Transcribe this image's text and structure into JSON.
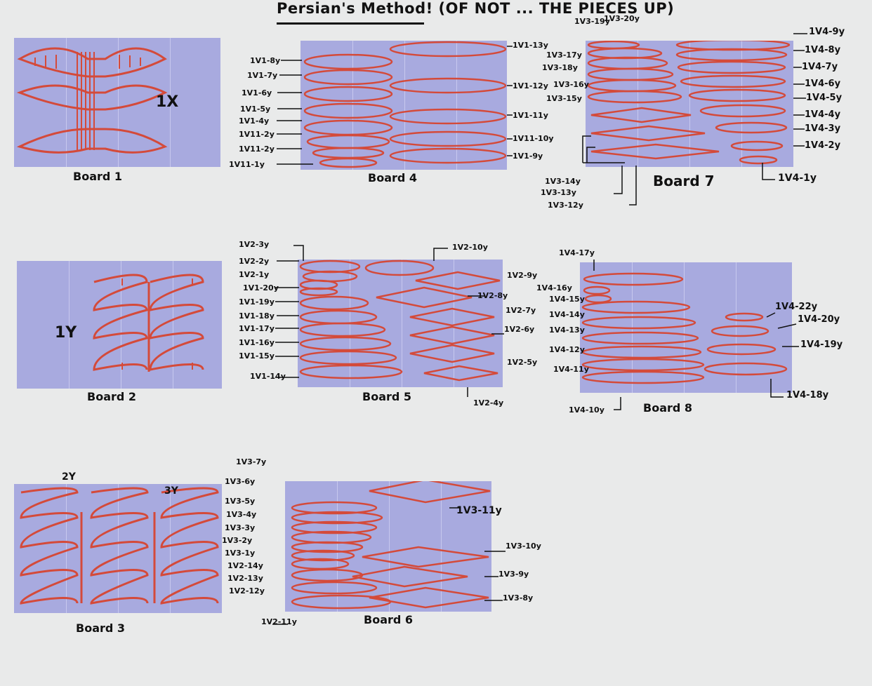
{
  "title": "Persian's Method! (OF NOT ... THE PIECES UP)",
  "colors": {
    "board": "#a8aadf",
    "strand": "#d44a3a",
    "ink": "#111111",
    "paper": "#e9eaea"
  },
  "boards": {
    "b1": {
      "caption": "Board 1",
      "note": "1X"
    },
    "b2": {
      "caption": "Board 2",
      "note": "1Y"
    },
    "b3": {
      "caption": "Board 3",
      "note_a": "2Y",
      "note_b": "3Y"
    },
    "b4": {
      "caption": "Board 4",
      "left": [
        "1V1-8y",
        "1V1-7y",
        "1V1-6y",
        "1V1-5y",
        "1V1-4y",
        "1V11-2y",
        "1V11-2y",
        "1V11-1y"
      ],
      "right": [
        "1V1-13y",
        "1V1-12y",
        "1V1-11y",
        "1V11-10y",
        "1V1-9y"
      ]
    },
    "b5": {
      "caption": "Board 5",
      "left": [
        "1V2-3y",
        "1V2-2y",
        "1V2-1y",
        "1V1-20y",
        "1V1-19y",
        "1V1-18y",
        "1V1-17y",
        "1V1-16y",
        "1V1-15y",
        "1V1-14y"
      ],
      "right": [
        "1V2-10y",
        "1V2-9y",
        "1V2-8y",
        "1V2-7y",
        "1V2-6y",
        "1V2-5y",
        "1V2-4y"
      ]
    },
    "b6": {
      "caption": "Board 6",
      "left": [
        "1V3-7y",
        "1V3-6y",
        "1V3-5y",
        "1V3-4y",
        "1V3-3y",
        "1V3-2y",
        "1V3-1y",
        "1V2-14y",
        "1V2-13y",
        "1V2-12y",
        "1V2-11y"
      ],
      "right": [
        "1V3-11y",
        "1V3-10y",
        "1V3-9y",
        "1V3-8y"
      ]
    },
    "b7": {
      "caption": "Board 7",
      "left": [
        "1V3-19y",
        "1V3-20y",
        "1V3-18y",
        "1V3-17y",
        "1V3-16y",
        "1V3-15y"
      ],
      "bottom": [
        "1V3-14y",
        "1V3-13y",
        "1V3-12y"
      ],
      "right": [
        "1V4-9y",
        "1V4-8y",
        "1V4-7y",
        "1V4-6y",
        "1V4-5y",
        "1V4-4y",
        "1V4-3y",
        "1V4-2y",
        "1V4-1y"
      ]
    },
    "b8": {
      "caption": "Board 8",
      "left": [
        "1V4-17y",
        "1V4-16y",
        "1V4-15y",
        "1V4-14y",
        "1V4-13y",
        "1V4-12y",
        "1V4-11y",
        "1V4-10y"
      ],
      "right": [
        "1V4-22y",
        "1V4-20y",
        "1V4-19y",
        "1V4-18y"
      ]
    }
  }
}
